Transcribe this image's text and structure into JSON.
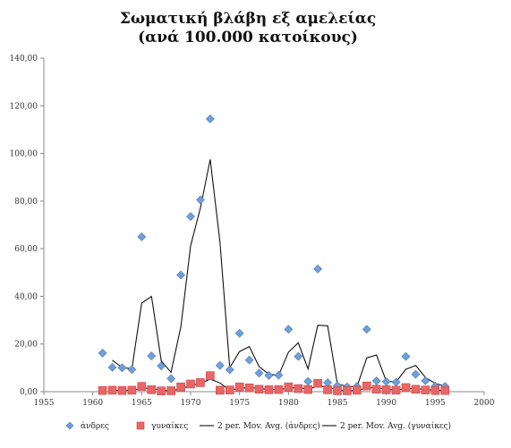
{
  "chart_data": {
    "type": "scatter",
    "title": [
      "Σωματική βλάβη εξ αμελείας",
      "(ανά 100.000 κατοίκους)"
    ],
    "xlabel": "",
    "ylabel": "",
    "xlim": [
      1955,
      2000
    ],
    "ylim": [
      0,
      140
    ],
    "x_ticks": [
      "1955",
      "1960",
      "1965",
      "1970",
      "1975",
      "1980",
      "1985",
      "1990",
      "1995",
      "2000"
    ],
    "y_ticks": [
      "0,00",
      "20,00",
      "40,00",
      "60,00",
      "80,00",
      "100,00",
      "120,00",
      "140,00"
    ],
    "grid": false,
    "legend_position": "bottom",
    "series": [
      {
        "name": "άνδρες",
        "kind": "marker",
        "marker": "diamond",
        "color": "#6fa0dc",
        "x": [
          1961,
          1962,
          1963,
          1964,
          1965,
          1966,
          1967,
          1968,
          1969,
          1970,
          1971,
          1972,
          1973,
          1974,
          1975,
          1976,
          1977,
          1978,
          1979,
          1980,
          1981,
          1982,
          1983,
          1984,
          1985,
          1986,
          1987,
          1988,
          1989,
          1990,
          1991,
          1992,
          1993,
          1994,
          1995,
          1996
        ],
        "y": [
          16.2,
          10.2,
          10.0,
          9.3,
          65.0,
          15.0,
          10.8,
          5.5,
          49.0,
          73.5,
          80.5,
          114.5,
          11.0,
          9.2,
          24.5,
          13.3,
          7.8,
          6.8,
          6.9,
          26.2,
          14.8,
          4.3,
          51.5,
          3.8,
          2.5,
          2.0,
          2.2,
          26.2,
          4.5,
          4.2,
          4.0,
          14.8,
          7.3,
          4.6,
          2.3,
          2.2
        ]
      },
      {
        "name": "γυναίκες",
        "kind": "marker",
        "marker": "square",
        "color": "#e86666",
        "x": [
          1961,
          1962,
          1963,
          1964,
          1965,
          1966,
          1967,
          1968,
          1969,
          1970,
          1971,
          1972,
          1973,
          1974,
          1975,
          1976,
          1977,
          1978,
          1979,
          1980,
          1981,
          1982,
          1983,
          1984,
          1985,
          1986,
          1987,
          1988,
          1989,
          1990,
          1991,
          1992,
          1993,
          1994,
          1995,
          1996
        ],
        "y": [
          0.5,
          0.6,
          0.5,
          0.6,
          2.2,
          0.8,
          0.3,
          0.4,
          2.0,
          3.2,
          3.8,
          6.7,
          0.6,
          0.7,
          2.0,
          1.6,
          1.0,
          0.8,
          0.9,
          2.0,
          1.3,
          0.9,
          3.5,
          0.8,
          0.4,
          0.4,
          0.6,
          2.4,
          1.0,
          0.8,
          0.6,
          1.7,
          1.0,
          0.7,
          0.5,
          0.5
        ]
      },
      {
        "name": "2 per. Mov. Avg. (άνδρες)",
        "kind": "line",
        "color": "#111111",
        "moving_average_of": 0
      },
      {
        "name": "2 per. Mov. Avg. (γυναίκες)",
        "kind": "line",
        "color": "#111111",
        "moving_average_of": 1
      }
    ]
  }
}
